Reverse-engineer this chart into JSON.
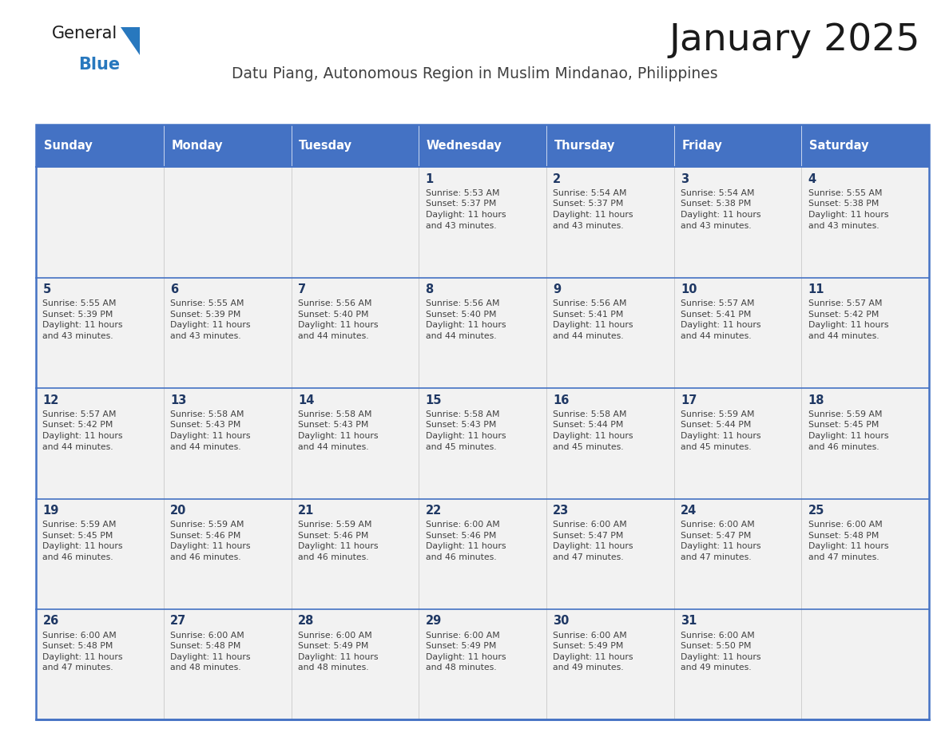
{
  "title": "January 2025",
  "subtitle": "Datu Piang, Autonomous Region in Muslim Mindanao, Philippines",
  "days_of_week": [
    "Sunday",
    "Monday",
    "Tuesday",
    "Wednesday",
    "Thursday",
    "Friday",
    "Saturday"
  ],
  "header_bg": "#4472C4",
  "header_text_color": "#FFFFFF",
  "cell_bg": "#F2F2F2",
  "day_num_color": "#1F3864",
  "text_color": "#404040",
  "border_color": "#4472C4",
  "cell_border_color": "#C0C0C0",
  "title_color": "#1a1a1a",
  "subtitle_color": "#404040",
  "calendar_data": [
    [
      "",
      "",
      "",
      "1|Sunrise: 5:53 AM|Sunset: 5:37 PM|Daylight: 11 hours|and 43 minutes.",
      "2|Sunrise: 5:54 AM|Sunset: 5:37 PM|Daylight: 11 hours|and 43 minutes.",
      "3|Sunrise: 5:54 AM|Sunset: 5:38 PM|Daylight: 11 hours|and 43 minutes.",
      "4|Sunrise: 5:55 AM|Sunset: 5:38 PM|Daylight: 11 hours|and 43 minutes."
    ],
    [
      "5|Sunrise: 5:55 AM|Sunset: 5:39 PM|Daylight: 11 hours|and 43 minutes.",
      "6|Sunrise: 5:55 AM|Sunset: 5:39 PM|Daylight: 11 hours|and 43 minutes.",
      "7|Sunrise: 5:56 AM|Sunset: 5:40 PM|Daylight: 11 hours|and 44 minutes.",
      "8|Sunrise: 5:56 AM|Sunset: 5:40 PM|Daylight: 11 hours|and 44 minutes.",
      "9|Sunrise: 5:56 AM|Sunset: 5:41 PM|Daylight: 11 hours|and 44 minutes.",
      "10|Sunrise: 5:57 AM|Sunset: 5:41 PM|Daylight: 11 hours|and 44 minutes.",
      "11|Sunrise: 5:57 AM|Sunset: 5:42 PM|Daylight: 11 hours|and 44 minutes."
    ],
    [
      "12|Sunrise: 5:57 AM|Sunset: 5:42 PM|Daylight: 11 hours|and 44 minutes.",
      "13|Sunrise: 5:58 AM|Sunset: 5:43 PM|Daylight: 11 hours|and 44 minutes.",
      "14|Sunrise: 5:58 AM|Sunset: 5:43 PM|Daylight: 11 hours|and 44 minutes.",
      "15|Sunrise: 5:58 AM|Sunset: 5:43 PM|Daylight: 11 hours|and 45 minutes.",
      "16|Sunrise: 5:58 AM|Sunset: 5:44 PM|Daylight: 11 hours|and 45 minutes.",
      "17|Sunrise: 5:59 AM|Sunset: 5:44 PM|Daylight: 11 hours|and 45 minutes.",
      "18|Sunrise: 5:59 AM|Sunset: 5:45 PM|Daylight: 11 hours|and 46 minutes."
    ],
    [
      "19|Sunrise: 5:59 AM|Sunset: 5:45 PM|Daylight: 11 hours|and 46 minutes.",
      "20|Sunrise: 5:59 AM|Sunset: 5:46 PM|Daylight: 11 hours|and 46 minutes.",
      "21|Sunrise: 5:59 AM|Sunset: 5:46 PM|Daylight: 11 hours|and 46 minutes.",
      "22|Sunrise: 6:00 AM|Sunset: 5:46 PM|Daylight: 11 hours|and 46 minutes.",
      "23|Sunrise: 6:00 AM|Sunset: 5:47 PM|Daylight: 11 hours|and 47 minutes.",
      "24|Sunrise: 6:00 AM|Sunset: 5:47 PM|Daylight: 11 hours|and 47 minutes.",
      "25|Sunrise: 6:00 AM|Sunset: 5:48 PM|Daylight: 11 hours|and 47 minutes."
    ],
    [
      "26|Sunrise: 6:00 AM|Sunset: 5:48 PM|Daylight: 11 hours|and 47 minutes.",
      "27|Sunrise: 6:00 AM|Sunset: 5:48 PM|Daylight: 11 hours|and 48 minutes.",
      "28|Sunrise: 6:00 AM|Sunset: 5:49 PM|Daylight: 11 hours|and 48 minutes.",
      "29|Sunrise: 6:00 AM|Sunset: 5:49 PM|Daylight: 11 hours|and 48 minutes.",
      "30|Sunrise: 6:00 AM|Sunset: 5:49 PM|Daylight: 11 hours|and 49 minutes.",
      "31|Sunrise: 6:00 AM|Sunset: 5:50 PM|Daylight: 11 hours|and 49 minutes.",
      ""
    ]
  ],
  "logo_general_color": "#1a1a1a",
  "logo_blue_color": "#2878BE",
  "logo_triangle_color": "#2878BE",
  "fig_width": 11.88,
  "fig_height": 9.18,
  "dpi": 100
}
